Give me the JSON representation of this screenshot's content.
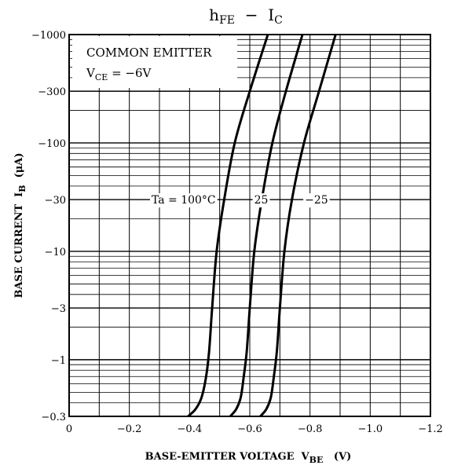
{
  "chart_data": {
    "type": "line",
    "title": {
      "main": "h",
      "main_sub": "FE",
      "sep": "  −  ",
      "sub_main": "I",
      "sub_sub": "C"
    },
    "xlabel": {
      "main": "BASE-EMITTER VOLTAGE  V",
      "sub": "BE",
      "unit": "(V)"
    },
    "ylabel": {
      "main": "BASE CURRENT  I",
      "sub": "B",
      "unit": "(μA)"
    },
    "x_scale": "linear",
    "y_scale": "log",
    "xlim": [
      0,
      -1.2
    ],
    "ylim": [
      -0.3,
      -1000
    ],
    "x_ticks": [
      {
        "value": 0,
        "label": "0"
      },
      {
        "value": -0.2,
        "label": "−0.2"
      },
      {
        "value": -0.4,
        "label": "−0.4"
      },
      {
        "value": -0.6,
        "label": "−0.6"
      },
      {
        "value": -0.8,
        "label": "−0.8"
      },
      {
        "value": -1.0,
        "label": "−1.0"
      },
      {
        "value": -1.2,
        "label": "−1.2"
      }
    ],
    "y_ticks": [
      {
        "value": -0.3,
        "label": "−0.3"
      },
      {
        "value": -1,
        "label": "−1"
      },
      {
        "value": -3,
        "label": "−3"
      },
      {
        "value": -10,
        "label": "−10"
      },
      {
        "value": -30,
        "label": "−30"
      },
      {
        "value": -100,
        "label": "−100"
      },
      {
        "value": -300,
        "label": "−300"
      },
      {
        "value": -1000,
        "label": "−1000"
      }
    ],
    "grid": true,
    "annotation": {
      "line1": "COMMON EMITTER",
      "line2_main": "V",
      "line2_sub": "CE",
      "line2_rest": " = −6V"
    },
    "series": [
      {
        "name": "Ta = 100°C",
        "points": [
          [
            -0.395,
            -0.3
          ],
          [
            -0.42,
            -0.35
          ],
          [
            -0.44,
            -0.45
          ],
          [
            -0.455,
            -0.7
          ],
          [
            -0.465,
            -1.2
          ],
          [
            -0.475,
            -3
          ],
          [
            -0.49,
            -10
          ],
          [
            -0.515,
            -30
          ],
          [
            -0.55,
            -100
          ],
          [
            -0.6,
            -300
          ],
          [
            -0.66,
            -1000
          ]
        ]
      },
      {
        "name": "25",
        "points": [
          [
            -0.535,
            -0.3
          ],
          [
            -0.555,
            -0.35
          ],
          [
            -0.57,
            -0.45
          ],
          [
            -0.58,
            -0.7
          ],
          [
            -0.59,
            -1.2
          ],
          [
            -0.6,
            -3
          ],
          [
            -0.615,
            -10
          ],
          [
            -0.64,
            -30
          ],
          [
            -0.675,
            -100
          ],
          [
            -0.72,
            -300
          ],
          [
            -0.775,
            -1000
          ]
        ]
      },
      {
        "name": "−25",
        "points": [
          [
            -0.635,
            -0.3
          ],
          [
            -0.655,
            -0.35
          ],
          [
            -0.67,
            -0.45
          ],
          [
            -0.68,
            -0.7
          ],
          [
            -0.69,
            -1.2
          ],
          [
            -0.7,
            -3
          ],
          [
            -0.715,
            -10
          ],
          [
            -0.74,
            -30
          ],
          [
            -0.78,
            -100
          ],
          [
            -0.83,
            -300
          ],
          [
            -0.885,
            -1000
          ]
        ]
      }
    ]
  }
}
